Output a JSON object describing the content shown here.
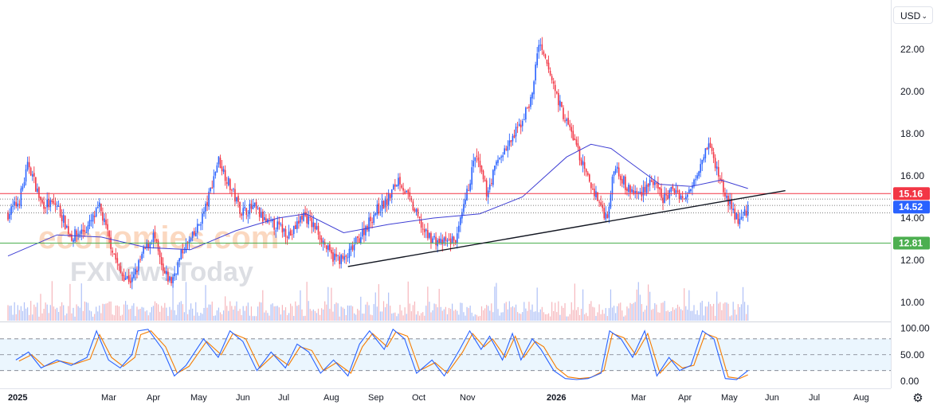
{
  "currency_selector": {
    "value": "USD"
  },
  "watermark": {
    "line1": "economies.com",
    "line2": "FXNewsToday"
  },
  "colors": {
    "up": "#2962ff",
    "down": "#f23645",
    "ma": "#3f3fd4",
    "resistance": "#f23645",
    "support": "#4caf50",
    "last_price": "#2962ff",
    "stoch_k": "#2962ff",
    "stoch_d": "#f57c00"
  },
  "chart_data": [
    {
      "type": "candlestick",
      "title": "",
      "y_ticks": [
        "22.00",
        "20.00",
        "18.00",
        "16.00",
        "14.00",
        "12.00",
        "10.00"
      ],
      "ylim": [
        9.5,
        23.0
      ],
      "x_ticks": [
        "2025",
        "Mar",
        "Apr",
        "May",
        "Jun",
        "Jul",
        "Aug",
        "Sep",
        "Oct",
        "Nov",
        "2026",
        "Mar",
        "Apr",
        "May",
        "Jun",
        "Jul",
        "Aug"
      ],
      "x_ticks_bold": [
        "2025",
        "2026"
      ],
      "grid": false,
      "moving_average": "one series",
      "dotted_reference_levels": [
        14.9,
        14.6,
        14.25
      ],
      "path_points": [
        [
          "2025-01-01",
          14.2
        ],
        [
          "2025-01-08",
          14.8
        ],
        [
          "2025-01-14",
          16.6
        ],
        [
          "2025-01-22",
          14.7
        ],
        [
          "2025-02-01",
          14.6
        ],
        [
          "2025-02-10",
          13.1
        ],
        [
          "2025-02-20",
          13.5
        ],
        [
          "2025-02-28",
          14.5
        ],
        [
          "2025-03-06",
          13.1
        ],
        [
          "2025-03-14",
          11.4
        ],
        [
          "2025-03-22",
          11.0
        ],
        [
          "2025-03-30",
          12.4
        ],
        [
          "2025-04-06",
          13.2
        ],
        [
          "2025-04-12",
          11.4
        ],
        [
          "2025-04-18",
          11.0
        ],
        [
          "2025-04-26",
          12.5
        ],
        [
          "2025-05-04",
          13.2
        ],
        [
          "2025-05-12",
          14.6
        ],
        [
          "2025-05-20",
          16.8
        ],
        [
          "2025-05-28",
          15.5
        ],
        [
          "2025-06-05",
          14.3
        ],
        [
          "2025-06-14",
          14.5
        ],
        [
          "2025-06-22",
          13.8
        ],
        [
          "2025-07-01",
          13.6
        ],
        [
          "2025-07-10",
          13.2
        ],
        [
          "2025-07-18",
          14.2
        ],
        [
          "2025-07-28",
          13.4
        ],
        [
          "2025-08-06",
          12.2
        ],
        [
          "2025-08-16",
          12.0
        ],
        [
          "2025-08-26",
          13.1
        ],
        [
          "2025-09-06",
          14.3
        ],
        [
          "2025-09-14",
          14.8
        ],
        [
          "2025-09-22",
          15.9
        ],
        [
          "2025-10-01",
          14.6
        ],
        [
          "2025-10-10",
          13.2
        ],
        [
          "2025-10-20",
          12.8
        ],
        [
          "2025-10-30",
          13.0
        ],
        [
          "2025-11-05",
          14.8
        ],
        [
          "2025-11-12",
          17.0
        ],
        [
          "2025-11-20",
          15.2
        ],
        [
          "2025-11-28",
          16.8
        ],
        [
          "2025-12-06",
          17.5
        ],
        [
          "2025-12-14",
          18.5
        ],
        [
          "2025-12-22",
          19.8
        ],
        [
          "2025-12-26",
          22.3
        ],
        [
          "2026-01-04",
          20.7
        ],
        [
          "2026-01-12",
          19.0
        ],
        [
          "2026-01-20",
          17.8
        ],
        [
          "2026-01-28",
          16.1
        ],
        [
          "2026-02-05",
          15.0
        ],
        [
          "2026-02-12",
          14.0
        ],
        [
          "2026-02-18",
          16.6
        ],
        [
          "2026-02-26",
          15.4
        ],
        [
          "2026-03-06",
          15.1
        ],
        [
          "2026-03-14",
          15.8
        ],
        [
          "2026-03-22",
          14.9
        ],
        [
          "2026-03-30",
          15.4
        ],
        [
          "2026-04-06",
          14.8
        ],
        [
          "2026-04-14",
          16.2
        ],
        [
          "2026-04-22",
          17.6
        ],
        [
          "2026-04-28",
          16.3
        ],
        [
          "2026-05-04",
          15.1
        ],
        [
          "2026-05-10",
          14.2
        ],
        [
          "2026-05-15",
          13.8
        ],
        [
          "2026-05-20",
          14.5
        ]
      ],
      "ma_points": [
        [
          "2025-01-01",
          12.2
        ],
        [
          "2025-02-01",
          13.2
        ],
        [
          "2025-03-01",
          13.1
        ],
        [
          "2025-04-01",
          12.6
        ],
        [
          "2025-05-01",
          12.5
        ],
        [
          "2025-06-01",
          13.4
        ],
        [
          "2025-07-01",
          14.0
        ],
        [
          "2025-07-20",
          14.2
        ],
        [
          "2025-08-15",
          13.3
        ],
        [
          "2025-09-15",
          13.7
        ],
        [
          "2025-10-15",
          14.0
        ],
        [
          "2025-11-15",
          14.2
        ],
        [
          "2025-12-15",
          15.0
        ],
        [
          "2026-01-15",
          16.9
        ],
        [
          "2026-02-01",
          17.5
        ],
        [
          "2026-02-15",
          17.3
        ],
        [
          "2026-03-01",
          16.6
        ],
        [
          "2026-03-20",
          15.6
        ],
        [
          "2026-04-10",
          15.5
        ],
        [
          "2026-05-01",
          15.8
        ],
        [
          "2026-05-20",
          15.4
        ]
      ],
      "trendline": {
        "start": [
          "2025-08-18",
          11.7
        ],
        "end": [
          "2026-06-15",
          15.3
        ]
      },
      "horizontal_levels": [
        {
          "label": "15.16",
          "value": 15.16,
          "role": "resistance"
        },
        {
          "label": "12.81",
          "value": 12.81,
          "role": "support"
        }
      ],
      "last_price": {
        "label": "14.52",
        "value": 14.52
      }
    },
    {
      "type": "line",
      "title": "",
      "y_ticks": [
        "100.00",
        "50.00",
        "0.00"
      ],
      "ylim": [
        0,
        100
      ],
      "band": [
        20,
        80
      ],
      "midline": 50,
      "series": [
        {
          "points": [
            [
              "2025-01-06",
              40
            ],
            [
              "2025-01-14",
              55
            ],
            [
              "2025-01-22",
              25
            ],
            [
              "2025-02-01",
              40
            ],
            [
              "2025-02-10",
              30
            ],
            [
              "2025-02-20",
              45
            ],
            [
              "2025-02-26",
              95
            ],
            [
              "2025-03-06",
              40
            ],
            [
              "2025-03-14",
              25
            ],
            [
              "2025-03-22",
              50
            ],
            [
              "2025-03-26",
              95
            ],
            [
              "2025-04-02",
              98
            ],
            [
              "2025-04-12",
              60
            ],
            [
              "2025-04-20",
              10
            ],
            [
              "2025-04-28",
              30
            ],
            [
              "2025-05-10",
              80
            ],
            [
              "2025-05-20",
              45
            ],
            [
              "2025-05-28",
              95
            ],
            [
              "2025-06-06",
              75
            ],
            [
              "2025-06-16",
              20
            ],
            [
              "2025-06-26",
              55
            ],
            [
              "2025-07-06",
              25
            ],
            [
              "2025-07-14",
              70
            ],
            [
              "2025-07-22",
              55
            ],
            [
              "2025-07-30",
              15
            ],
            [
              "2025-08-08",
              40
            ],
            [
              "2025-08-18",
              10
            ],
            [
              "2025-08-26",
              70
            ],
            [
              "2025-09-02",
              95
            ],
            [
              "2025-09-12",
              60
            ],
            [
              "2025-09-18",
              98
            ],
            [
              "2025-09-26",
              80
            ],
            [
              "2025-10-04",
              15
            ],
            [
              "2025-10-14",
              40
            ],
            [
              "2025-10-22",
              10
            ],
            [
              "2025-11-01",
              60
            ],
            [
              "2025-11-08",
              95
            ],
            [
              "2025-11-16",
              60
            ],
            [
              "2025-11-22",
              85
            ],
            [
              "2025-12-01",
              40
            ],
            [
              "2025-12-08",
              90
            ],
            [
              "2025-12-14",
              40
            ],
            [
              "2025-12-22",
              80
            ],
            [
              "2025-12-28",
              60
            ],
            [
              "2026-01-06",
              20
            ],
            [
              "2026-01-14",
              5
            ],
            [
              "2026-01-22",
              3
            ],
            [
              "2026-01-30",
              5
            ],
            [
              "2026-02-08",
              15
            ],
            [
              "2026-02-14",
              95
            ],
            [
              "2026-02-22",
              80
            ],
            [
              "2026-03-02",
              45
            ],
            [
              "2026-03-10",
              95
            ],
            [
              "2026-03-18",
              10
            ],
            [
              "2026-03-26",
              45
            ],
            [
              "2026-04-02",
              20
            ],
            [
              "2026-04-10",
              30
            ],
            [
              "2026-04-18",
              95
            ],
            [
              "2026-04-26",
              80
            ],
            [
              "2026-05-04",
              5
            ],
            [
              "2026-05-12",
              3
            ],
            [
              "2026-05-20",
              20
            ]
          ]
        },
        {
          "points": [
            [
              "2025-01-08",
              38
            ],
            [
              "2025-01-16",
              50
            ],
            [
              "2025-01-24",
              28
            ],
            [
              "2025-02-03",
              38
            ],
            [
              "2025-02-12",
              32
            ],
            [
              "2025-02-22",
              42
            ],
            [
              "2025-02-28",
              88
            ],
            [
              "2025-03-08",
              45
            ],
            [
              "2025-03-16",
              28
            ],
            [
              "2025-03-24",
              45
            ],
            [
              "2025-03-28",
              88
            ],
            [
              "2025-04-04",
              95
            ],
            [
              "2025-04-14",
              65
            ],
            [
              "2025-04-22",
              15
            ],
            [
              "2025-04-30",
              28
            ],
            [
              "2025-05-12",
              75
            ],
            [
              "2025-05-22",
              50
            ],
            [
              "2025-05-30",
              90
            ],
            [
              "2025-06-08",
              80
            ],
            [
              "2025-06-18",
              25
            ],
            [
              "2025-06-28",
              50
            ],
            [
              "2025-07-08",
              30
            ],
            [
              "2025-07-16",
              65
            ],
            [
              "2025-07-24",
              58
            ],
            [
              "2025-08-01",
              20
            ],
            [
              "2025-08-10",
              35
            ],
            [
              "2025-08-20",
              15
            ],
            [
              "2025-08-28",
              65
            ],
            [
              "2025-09-04",
              90
            ],
            [
              "2025-09-14",
              65
            ],
            [
              "2025-09-20",
              93
            ],
            [
              "2025-09-28",
              85
            ],
            [
              "2025-10-06",
              20
            ],
            [
              "2025-10-16",
              35
            ],
            [
              "2025-10-24",
              15
            ],
            [
              "2025-11-03",
              55
            ],
            [
              "2025-11-10",
              90
            ],
            [
              "2025-11-18",
              65
            ],
            [
              "2025-11-24",
              80
            ],
            [
              "2025-12-03",
              45
            ],
            [
              "2025-12-10",
              85
            ],
            [
              "2025-12-16",
              45
            ],
            [
              "2025-12-24",
              75
            ],
            [
              "2025-12-30",
              65
            ],
            [
              "2026-01-08",
              25
            ],
            [
              "2026-01-16",
              8
            ],
            [
              "2026-01-24",
              5
            ],
            [
              "2026-02-01",
              7
            ],
            [
              "2026-02-10",
              20
            ],
            [
              "2026-02-16",
              90
            ],
            [
              "2026-02-24",
              82
            ],
            [
              "2026-03-04",
              50
            ],
            [
              "2026-03-12",
              90
            ],
            [
              "2026-03-20",
              15
            ],
            [
              "2026-03-28",
              40
            ],
            [
              "2026-04-04",
              25
            ],
            [
              "2026-04-12",
              30
            ],
            [
              "2026-04-20",
              90
            ],
            [
              "2026-04-28",
              82
            ],
            [
              "2026-05-06",
              8
            ],
            [
              "2026-05-14",
              5
            ],
            [
              "2026-05-20",
              12
            ]
          ]
        }
      ]
    }
  ]
}
